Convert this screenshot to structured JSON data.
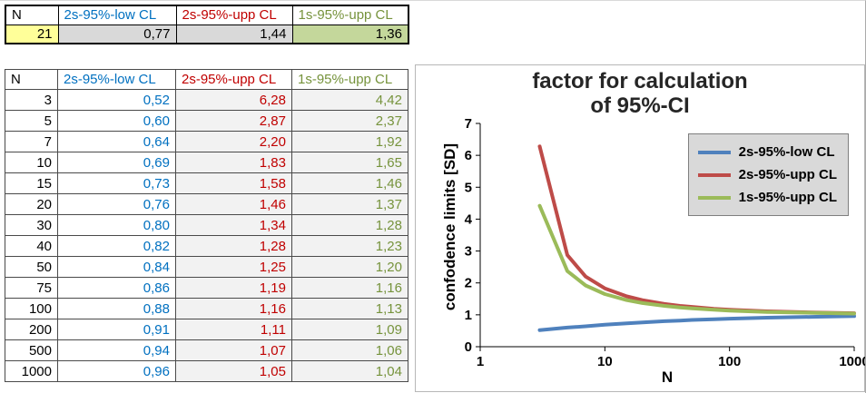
{
  "top_table": {
    "headers": [
      "N",
      "2s-95%-low CL",
      "2s-95%-upp CL",
      "1s-95%-upp CL"
    ],
    "row": {
      "n": "21",
      "low": "0,77",
      "upp": "1,44",
      "one": "1,36"
    }
  },
  "main_table": {
    "headers": [
      "N",
      "2s-95%-low CL",
      "2s-95%-upp CL",
      "1s-95%-upp CL"
    ],
    "rows": [
      {
        "n": "3",
        "low": "0,52",
        "upp": "6,28",
        "one": "4,42"
      },
      {
        "n": "5",
        "low": "0,60",
        "upp": "2,87",
        "one": "2,37"
      },
      {
        "n": "7",
        "low": "0,64",
        "upp": "2,20",
        "one": "1,92"
      },
      {
        "n": "10",
        "low": "0,69",
        "upp": "1,83",
        "one": "1,65"
      },
      {
        "n": "15",
        "low": "0,73",
        "upp": "1,58",
        "one": "1,46"
      },
      {
        "n": "20",
        "low": "0,76",
        "upp": "1,46",
        "one": "1,37"
      },
      {
        "n": "30",
        "low": "0,80",
        "upp": "1,34",
        "one": "1,28"
      },
      {
        "n": "40",
        "low": "0,82",
        "upp": "1,28",
        "one": "1,23"
      },
      {
        "n": "50",
        "low": "0,84",
        "upp": "1,25",
        "one": "1,20"
      },
      {
        "n": "75",
        "low": "0,86",
        "upp": "1,19",
        "one": "1,16"
      },
      {
        "n": "100",
        "low": "0,88",
        "upp": "1,16",
        "one": "1,13"
      },
      {
        "n": "200",
        "low": "0,91",
        "upp": "1,11",
        "one": "1,09"
      },
      {
        "n": "500",
        "low": "0,94",
        "upp": "1,07",
        "one": "1,06"
      },
      {
        "n": "1000",
        "low": "0,96",
        "upp": "1,05",
        "one": "1,04"
      }
    ]
  },
  "chart": {
    "title_line1": "factor for calculation",
    "title_line2": "of 95%-CI",
    "ylabel": "confodence limits  [SD]",
    "xlabel": "N",
    "legend_bg": "#D9D9D9",
    "chart_data": {
      "type": "line",
      "x_scale": "log",
      "xlim": [
        1,
        1000
      ],
      "ylim": [
        0,
        7
      ],
      "x_ticks": [
        "1",
        "10",
        "100",
        "1000"
      ],
      "y_ticks": [
        "0",
        "1",
        "2",
        "3",
        "4",
        "5",
        "6",
        "7"
      ],
      "x": [
        3,
        5,
        7,
        10,
        15,
        20,
        30,
        40,
        50,
        75,
        100,
        200,
        500,
        1000
      ],
      "series": [
        {
          "name": "2s-95%-low CL",
          "color": "#4F81BD",
          "values": [
            0.52,
            0.6,
            0.64,
            0.69,
            0.73,
            0.76,
            0.8,
            0.82,
            0.84,
            0.86,
            0.88,
            0.91,
            0.94,
            0.96
          ]
        },
        {
          "name": "2s-95%-upp CL",
          "color": "#BE4B48",
          "values": [
            6.28,
            2.87,
            2.2,
            1.83,
            1.58,
            1.46,
            1.34,
            1.28,
            1.25,
            1.19,
            1.16,
            1.11,
            1.07,
            1.05
          ]
        },
        {
          "name": "1s-95%-upp CL",
          "color": "#9BBB59",
          "values": [
            4.42,
            2.37,
            1.92,
            1.65,
            1.46,
            1.37,
            1.28,
            1.23,
            1.2,
            1.16,
            1.13,
            1.09,
            1.06,
            1.04
          ]
        }
      ]
    }
  }
}
